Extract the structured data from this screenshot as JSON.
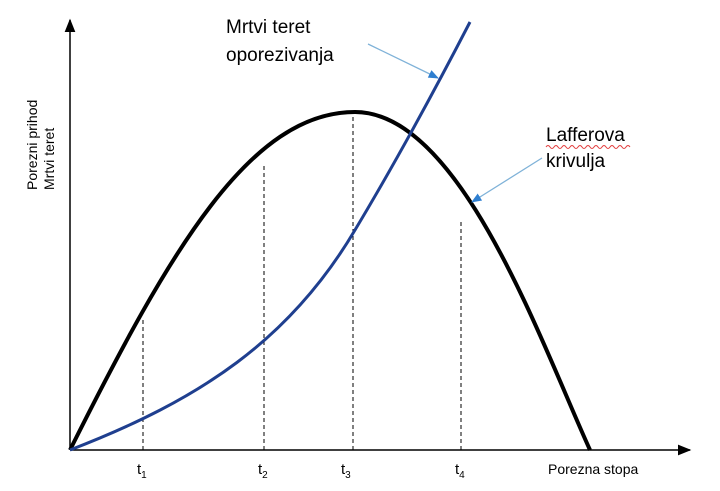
{
  "y_axis_label": {
    "line1": "Porezni prihod",
    "line2": "Mrtvi teret"
  },
  "x_axis_label": "Porezna stopa",
  "ticks": [
    {
      "main": "t",
      "sub": "1"
    },
    {
      "main": "t",
      "sub": "2"
    },
    {
      "main": "t",
      "sub": "3"
    },
    {
      "main": "t",
      "sub": "4"
    }
  ],
  "deadweight_label": {
    "line1": "Mrtvi teret",
    "line2": "oporezivanja"
  },
  "laffer_label": {
    "line1": "Lafferova",
    "line2": "krivulja"
  },
  "colors": {
    "laffer_curve": "#000000",
    "deadweight_curve": "#1f3f8f",
    "pointer_arrow": "#7fb2d8"
  }
}
